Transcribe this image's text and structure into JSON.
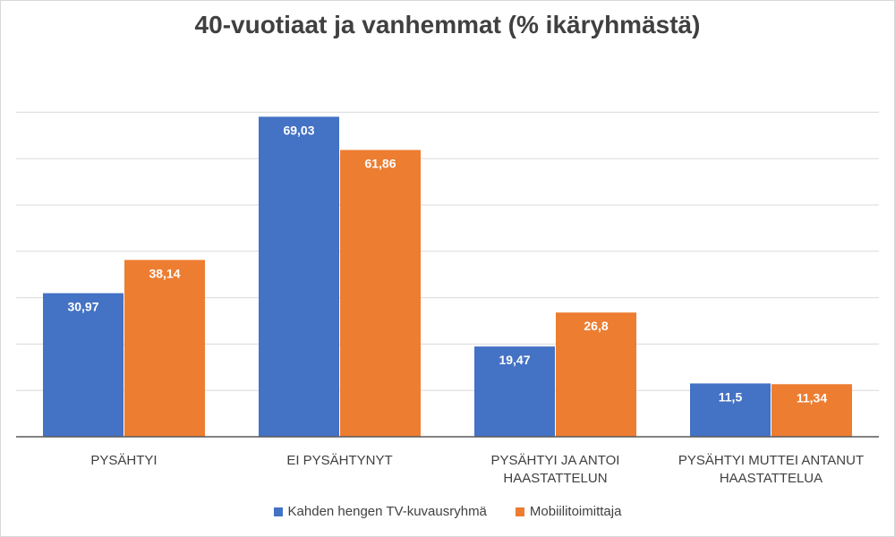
{
  "chart_data": {
    "type": "bar",
    "title": "40-vuotiaat ja vanhemmat (% ikäryhmästä)",
    "xlabel": "",
    "ylabel": "",
    "ylim": [
      0,
      70
    ],
    "grid": true,
    "legend_position": "bottom",
    "categories": [
      [
        "PYSÄHTYI"
      ],
      [
        "EI PYSÄHTYNYT"
      ],
      [
        "PYSÄHTYI JA ANTOI",
        "HAASTATTELUN"
      ],
      [
        "PYSÄHTYI MUTTEI ANTANUT",
        "HAASTATTELUA"
      ]
    ],
    "series": [
      {
        "name": "Kahden hengen TV-kuvausryhmä",
        "color": "#4472c4",
        "values": [
          30.97,
          69.03,
          19.47,
          11.5
        ],
        "labels": [
          "30,97",
          "69,03",
          "19,47",
          "11,5"
        ]
      },
      {
        "name": "Mobiilitoimittaja",
        "color": "#ed7d31",
        "values": [
          38.14,
          61.86,
          26.8,
          11.34
        ],
        "labels": [
          "38,14",
          "61,86",
          "26,8",
          "11,34"
        ]
      }
    ]
  }
}
